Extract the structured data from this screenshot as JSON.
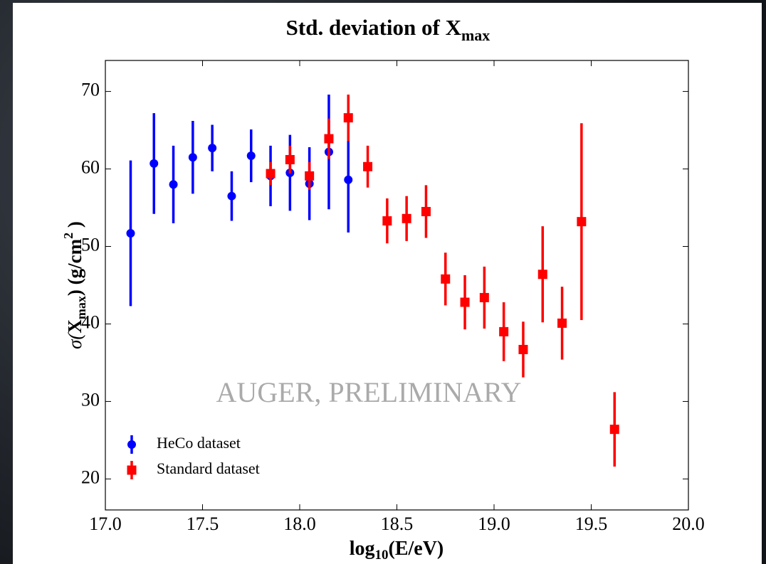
{
  "chart_data": {
    "type": "errorbar",
    "title": {
      "text": "Std. deviation of X",
      "sub": "max"
    },
    "xlabel": {
      "pre": "log",
      "sub": "10",
      "post": "(E/eV)"
    },
    "ylabel": {
      "pre": "σ(",
      "base": "X",
      "sub": "max",
      "mid": ")   (g/cm",
      "sup": "2",
      "post": " )"
    },
    "annotation": "AUGER, PRELIMINARY",
    "xlim": [
      17.0,
      20.0
    ],
    "ylim": [
      16,
      74
    ],
    "xticks": [
      {
        "value": 17,
        "label": "17.0"
      },
      {
        "value": 17.5,
        "label": "17.5"
      },
      {
        "value": 18,
        "label": "18.0"
      },
      {
        "value": 18.5,
        "label": "18.5"
      },
      {
        "value": 19,
        "label": "19.0"
      },
      {
        "value": 19.5,
        "label": "19.5"
      },
      {
        "value": 20,
        "label": "20.0"
      }
    ],
    "yticks": [
      20,
      30,
      40,
      50,
      60,
      70
    ],
    "legend": "lower left",
    "series": [
      {
        "name": "HeCo dataset",
        "color": "#0000ff",
        "marker": "circle",
        "x": [
          17.13,
          17.25,
          17.35,
          17.45,
          17.55,
          17.65,
          17.75,
          17.85,
          17.95,
          18.05,
          18.15,
          18.25
        ],
        "values": [
          51.7,
          60.7,
          58.0,
          61.5,
          62.7,
          56.5,
          61.7,
          59.1,
          59.5,
          58.1,
          62.2,
          58.6
        ],
        "errors": [
          9.4,
          6.5,
          5.0,
          4.7,
          3.0,
          3.2,
          3.4,
          3.9,
          4.9,
          4.7,
          7.4,
          6.8
        ]
      },
      {
        "name": "Standard dataset",
        "color": "#ff0000",
        "marker": "square",
        "x": [
          17.85,
          17.95,
          18.05,
          18.15,
          18.25,
          18.35,
          18.45,
          18.55,
          18.65,
          18.75,
          18.85,
          18.95,
          19.05,
          19.15,
          19.25,
          19.35,
          19.45,
          19.62
        ],
        "values": [
          59.4,
          61.2,
          59.1,
          63.9,
          66.6,
          60.3,
          53.3,
          53.6,
          54.5,
          45.8,
          42.8,
          43.4,
          39.0,
          36.7,
          46.4,
          40.1,
          53.2,
          26.4
        ],
        "errors": [
          1.5,
          1.8,
          1.8,
          2.6,
          3.0,
          2.7,
          2.9,
          2.9,
          3.4,
          3.4,
          3.5,
          4.0,
          3.8,
          3.6,
          6.2,
          4.7,
          12.7,
          4.8
        ]
      }
    ]
  }
}
